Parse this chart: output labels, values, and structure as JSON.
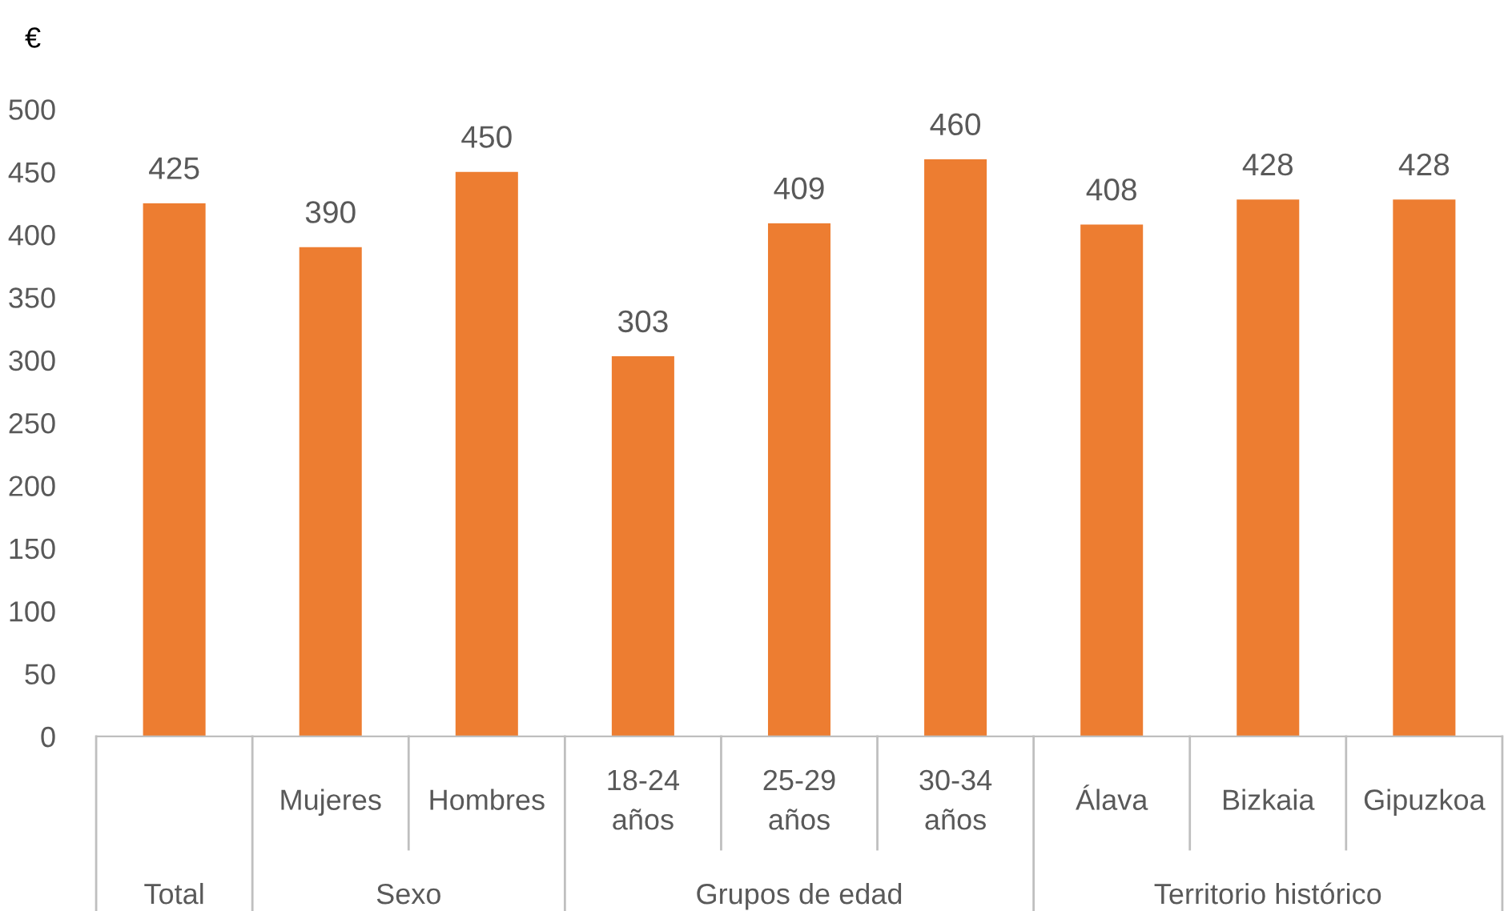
{
  "chart_data": {
    "type": "bar",
    "ylabel": "€",
    "categories": [
      null,
      "Mujeres",
      "Hombres",
      "18-24\naños",
      "25-29\naños",
      "30-34\naños",
      "Álava",
      "Bizkaia",
      "Gipuzkoa"
    ],
    "values": [
      425,
      390,
      450,
      303,
      409,
      460,
      408,
      428,
      428
    ],
    "color": "#ed7d31",
    "annotations": [
      "Total",
      "Sexo",
      "Grupos de edad",
      "Territorio histórico"
    ],
    "ylim": [
      0,
      500
    ],
    "yticks": [
      0,
      50,
      100,
      150,
      200,
      250,
      300,
      350,
      400,
      450,
      500
    ],
    "data_labels": true,
    "grid": false
  }
}
